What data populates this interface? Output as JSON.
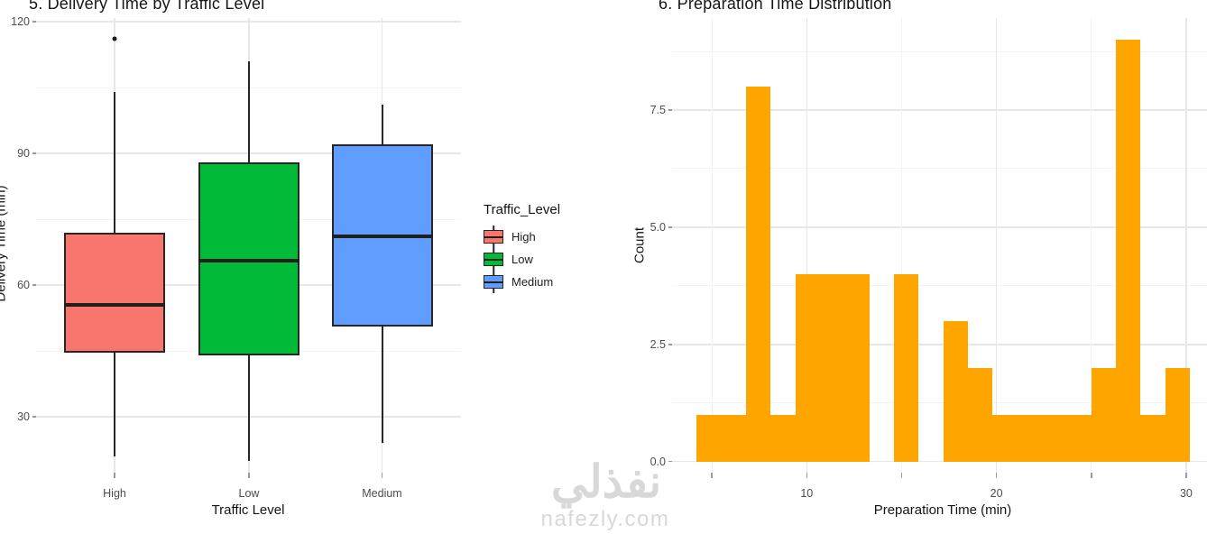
{
  "watermark": {
    "logo": "نفذلي",
    "domain": "nafezly.com"
  },
  "chart_data": [
    {
      "type": "boxplot",
      "title": "5. Delivery Time by Traffic Level",
      "xlabel": "Traffic Level",
      "ylabel": "Delivery Time (min)",
      "categories": [
        "High",
        "Low",
        "Medium"
      ],
      "ylim": [
        18,
        122
      ],
      "y_ticks": [
        {
          "v": 30,
          "label": "30"
        },
        {
          "v": 60,
          "label": "60"
        },
        {
          "v": 90,
          "label": "90"
        },
        {
          "v": 120,
          "label": "120"
        }
      ],
      "y_minor": [
        45,
        75,
        105
      ],
      "grid": true,
      "legend": {
        "title": "Traffic_Level",
        "position": "right",
        "entries": [
          {
            "label": "High",
            "color": "#F8766D"
          },
          {
            "label": "Low",
            "color": "#00BA38"
          },
          {
            "label": "Medium",
            "color": "#619CFF"
          }
        ]
      },
      "series": [
        {
          "category": "High",
          "color": "#F8766D",
          "whisker_low": 21,
          "q1": 44.5,
          "median": 55.5,
          "q3": 72,
          "whisker_high": 104,
          "outliers": [
            116
          ]
        },
        {
          "category": "Low",
          "color": "#00BA38",
          "whisker_low": 20,
          "q1": 44,
          "median": 65.5,
          "q3": 88,
          "whisker_high": 111,
          "outliers": []
        },
        {
          "category": "Medium",
          "color": "#619CFF",
          "whisker_low": 24,
          "q1": 50.5,
          "median": 71,
          "q3": 92,
          "whisker_high": 101,
          "outliers": []
        }
      ]
    },
    {
      "type": "histogram",
      "title": "6. Preparation Time Distribution",
      "xlabel": "Preparation Time (min)",
      "ylabel": "Count",
      "bar_color": "#FFA500",
      "xlim": [
        2.9,
        31.1
      ],
      "ylim": [
        0,
        9.6
      ],
      "bin_start": 4.2,
      "bin_width": 1.3,
      "counts": [
        1,
        1,
        8,
        1,
        4,
        4,
        4,
        0,
        4,
        0,
        3,
        2,
        1,
        1,
        1,
        1,
        2,
        9,
        1,
        2
      ],
      "x_ticks": [
        {
          "v": 10,
          "label": "10"
        },
        {
          "v": 20,
          "label": "20"
        },
        {
          "v": 30,
          "label": "30"
        }
      ],
      "x_minor": [
        5,
        15,
        25
      ],
      "y_ticks": [
        {
          "v": 0,
          "label": "0.0"
        },
        {
          "v": 2.5,
          "label": "2.5"
        },
        {
          "v": 5,
          "label": "5.0"
        },
        {
          "v": 7.5,
          "label": "7.5"
        }
      ],
      "y_minor": [
        1.25,
        3.75,
        6.25,
        8.75
      ],
      "grid": true
    }
  ]
}
